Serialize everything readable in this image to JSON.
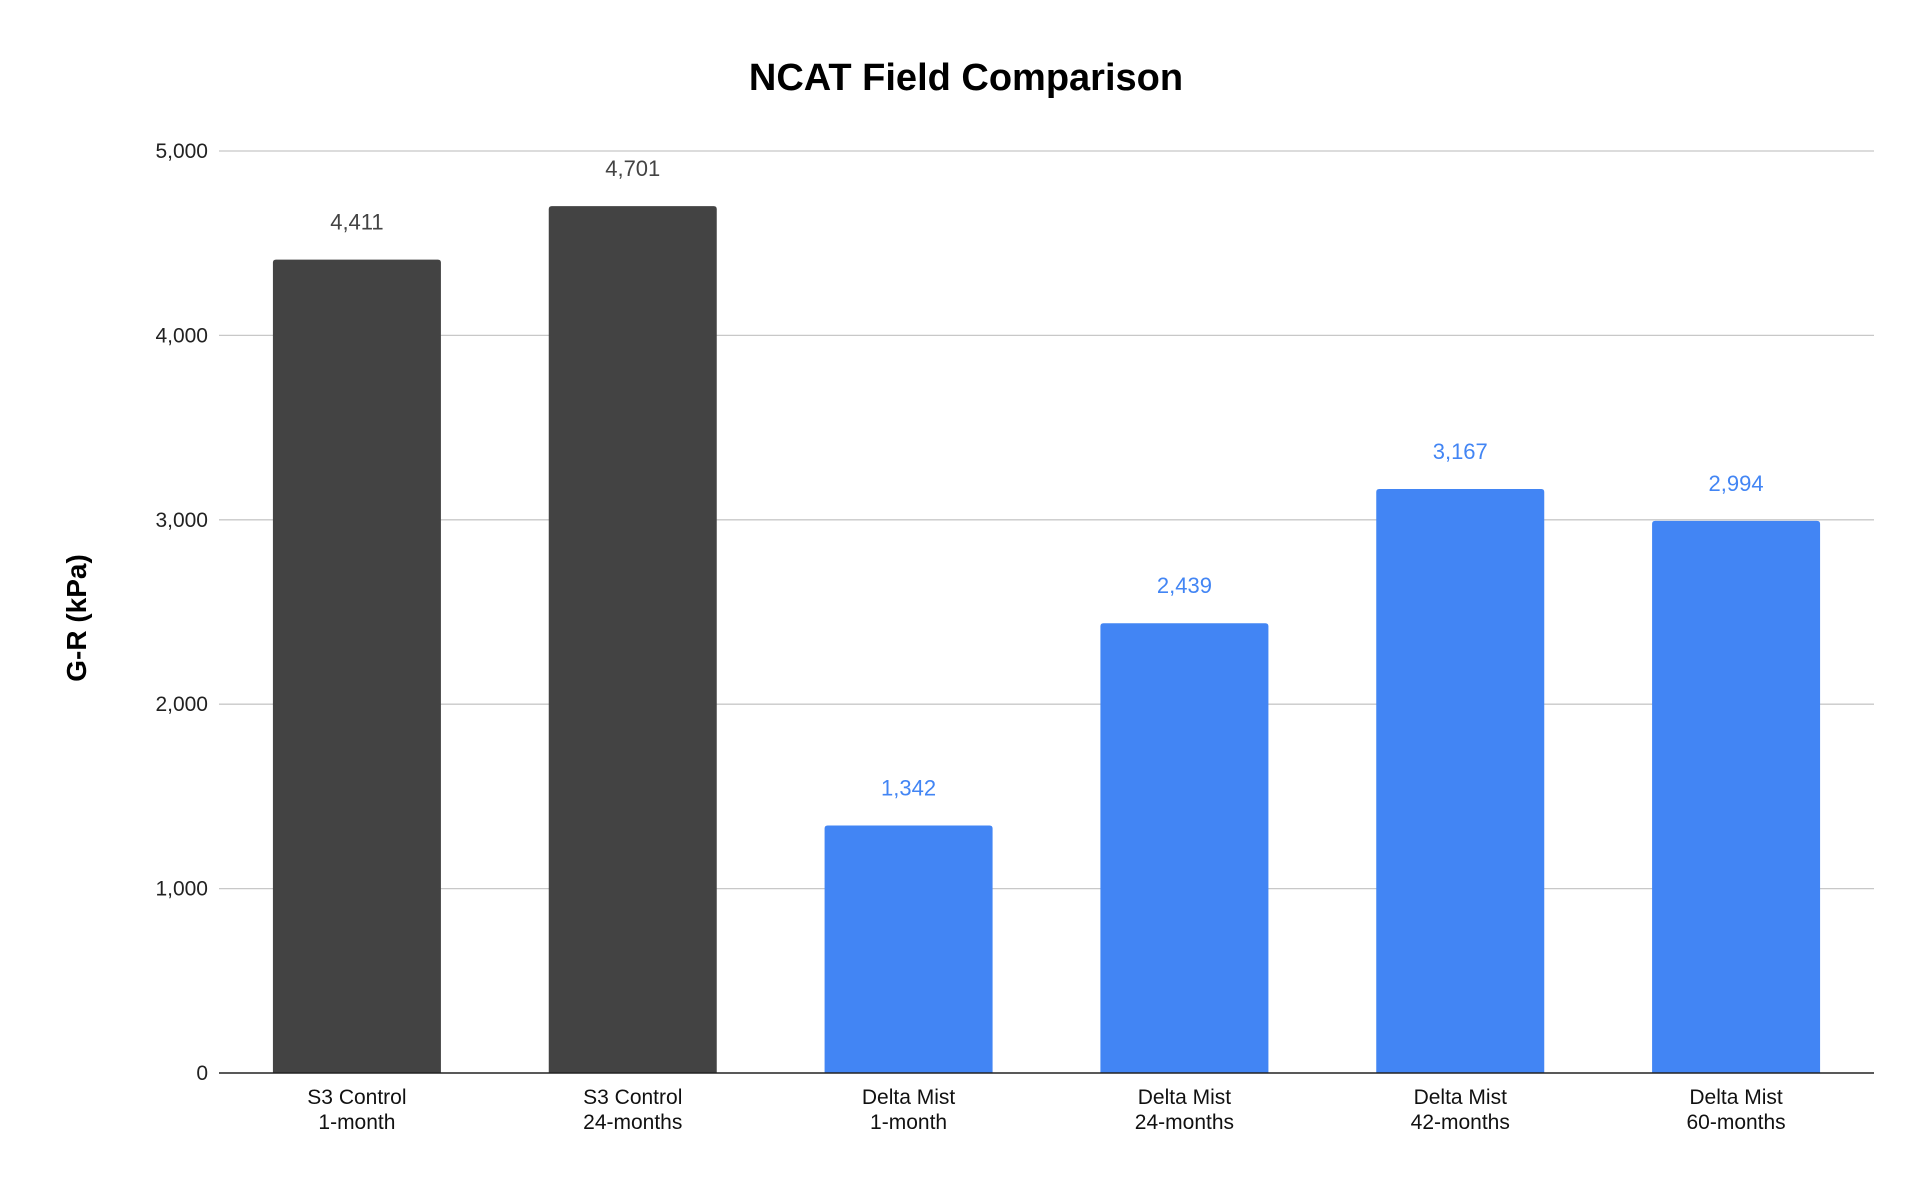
{
  "chart_data": {
    "type": "bar",
    "title": "NCAT Field Comparison",
    "xlabel": "",
    "ylabel": "G-R (kPa)",
    "ylim": [
      0,
      5000
    ],
    "yticks": [
      0,
      1000,
      2000,
      3000,
      4000,
      5000
    ],
    "ytick_labels": [
      "0",
      "1,000",
      "2,000",
      "3,000",
      "4,000",
      "5,000"
    ],
    "grid": true,
    "legend": "none",
    "categories": [
      [
        "S3 Control",
        "1-month"
      ],
      [
        "S3 Control",
        "24-months"
      ],
      [
        "Delta Mist",
        "1-month"
      ],
      [
        "Delta Mist",
        "24-months"
      ],
      [
        "Delta Mist",
        "42-months"
      ],
      [
        "Delta Mist",
        "60-months"
      ]
    ],
    "values": [
      4411,
      4701,
      1342,
      2439,
      3167,
      2994
    ],
    "value_labels": [
      "4,411",
      "4,701",
      "1,342",
      "2,439",
      "3,167",
      "2,994"
    ],
    "bar_colors": [
      "#434343",
      "#434343",
      "#4285f4",
      "#4285f4",
      "#4285f4",
      "#4285f4"
    ],
    "label_colors": [
      "#434343",
      "#434343",
      "#4285f4",
      "#4285f4",
      "#4285f4",
      "#4285f4"
    ]
  }
}
